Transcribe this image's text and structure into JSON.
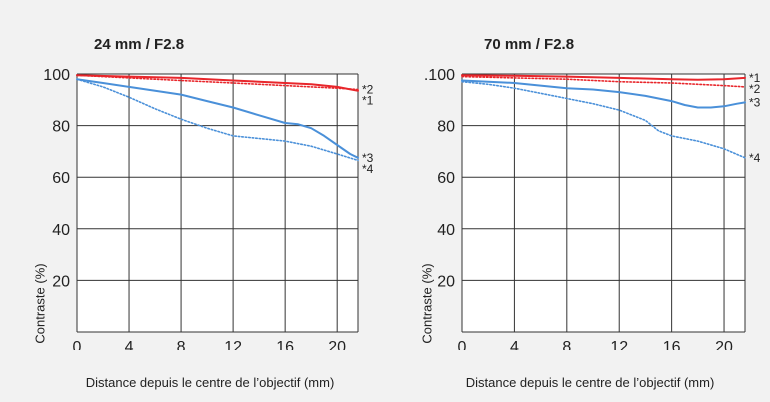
{
  "chart_data": [
    {
      "type": "line",
      "title": "24 mm  / F2.8",
      "xlabel": "Distance depuis le centre de l’objectif (mm)",
      "ylabel": "Contraste (%)",
      "xlim": [
        0,
        21.6
      ],
      "ylim": [
        0,
        100
      ],
      "x_ticks": [
        "0",
        "4",
        "8",
        "12",
        "16",
        "20"
      ],
      "y_ticks": [
        "100",
        "80",
        "60",
        "40",
        "20"
      ],
      "grid": true,
      "series": [
        {
          "name": "*1",
          "color": "#e8262b",
          "style": "solid",
          "x": [
            0,
            4,
            8,
            12,
            16,
            18,
            20,
            21.6
          ],
          "y": [
            99.5,
            99,
            98.5,
            97.5,
            96.5,
            96,
            95,
            93.5
          ]
        },
        {
          "name": "*2",
          "color": "#e8262b",
          "style": "dotted",
          "x": [
            0,
            4,
            8,
            12,
            16,
            18,
            20,
            21.6
          ],
          "y": [
            99.5,
            98.5,
            97.5,
            96.5,
            95.5,
            95,
            94.5,
            94
          ]
        },
        {
          "name": "*3",
          "color": "#4a90d9",
          "style": "solid",
          "x": [
            0,
            2,
            4,
            6,
            8,
            10,
            12,
            14,
            16,
            17,
            18,
            19,
            20,
            21,
            21.6
          ],
          "y": [
            98,
            96.5,
            95,
            93.5,
            92,
            89.5,
            87,
            84,
            81,
            80.5,
            79,
            76,
            72.5,
            69,
            67.5
          ]
        },
        {
          "name": "*4",
          "color": "#4a90d9",
          "style": "dotted",
          "x": [
            0,
            2,
            4,
            6,
            8,
            10,
            12,
            14,
            16,
            18,
            20,
            21.6
          ],
          "y": [
            98,
            95,
            91,
            86.5,
            82.5,
            79,
            76,
            75,
            74,
            72,
            69,
            66.5
          ]
        }
      ]
    },
    {
      "type": "line",
      "title": "70 mm  / F2.8",
      "xlabel": "Distance depuis le centre de l’objectif (mm)",
      "ylabel": "Contraste (%)",
      "xlim": [
        0,
        21.6
      ],
      "ylim": [
        0,
        100
      ],
      "x_ticks": [
        "0",
        "4",
        "8",
        "12",
        "16",
        "20"
      ],
      "y_ticks": [
        ".100",
        "80",
        "60",
        "40",
        "20"
      ],
      "grid": true,
      "series": [
        {
          "name": "*1",
          "color": "#e8262b",
          "style": "solid",
          "x": [
            0,
            4,
            8,
            12,
            16,
            18,
            20,
            21.6
          ],
          "y": [
            99.5,
            99.3,
            99,
            98.5,
            98,
            97.8,
            98,
            98.5
          ]
        },
        {
          "name": "*2",
          "color": "#e8262b",
          "style": "dotted",
          "x": [
            0,
            4,
            8,
            12,
            16,
            18,
            20,
            21.6
          ],
          "y": [
            99,
            98.5,
            98,
            97,
            96.5,
            96,
            95.5,
            95
          ]
        },
        {
          "name": "*3",
          "color": "#4a90d9",
          "style": "solid",
          "x": [
            0,
            2,
            4,
            6,
            8,
            10,
            12,
            14,
            16,
            17,
            18,
            19,
            20,
            21,
            21.6
          ],
          "y": [
            97.5,
            97,
            96.5,
            95.5,
            94.5,
            94,
            93,
            91.5,
            89.5,
            88,
            87,
            87,
            87.5,
            88.5,
            89
          ]
        },
        {
          "name": "*4",
          "color": "#4a90d9",
          "style": "dotted",
          "x": [
            0,
            2,
            4,
            6,
            8,
            10,
            12,
            14,
            15,
            16,
            18,
            20,
            21.6
          ],
          "y": [
            97,
            96,
            94.5,
            92.5,
            90.5,
            88.5,
            86,
            82,
            78,
            76,
            74,
            71,
            67.5
          ]
        }
      ]
    }
  ]
}
